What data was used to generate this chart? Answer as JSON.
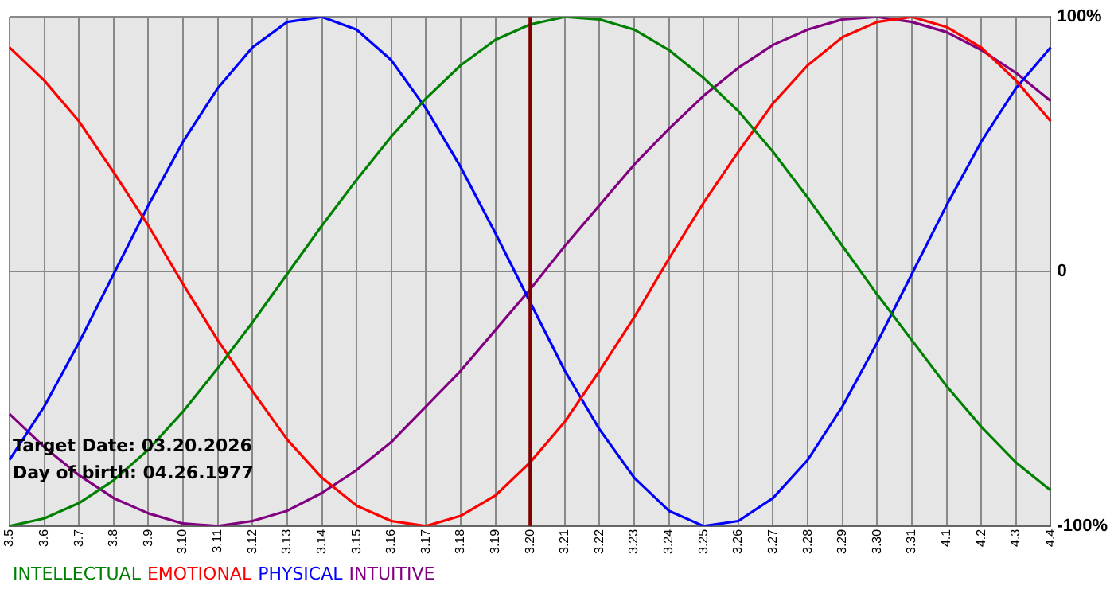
{
  "chart_data": {
    "type": "line",
    "categories": [
      "3.5",
      "3.6",
      "3.7",
      "3.8",
      "3.9",
      "3.10",
      "3.11",
      "3.12",
      "3.13",
      "3.14",
      "3.15",
      "3.16",
      "3.17",
      "3.18",
      "3.19",
      "3.20",
      "3.21",
      "3.22",
      "3.23",
      "3.24",
      "3.25",
      "3.26",
      "3.27",
      "3.28",
      "3.29",
      "3.30",
      "3.31",
      "4.1",
      "4.2",
      "4.3",
      "4.4"
    ],
    "series": [
      {
        "name": "INTELLECTUAL",
        "color": "#008000",
        "values": [
          -100,
          -97,
          -91,
          -82,
          -70,
          -55,
          -38,
          -20,
          -1,
          18,
          36,
          53,
          68,
          81,
          91,
          97,
          100,
          99,
          95,
          87,
          76,
          63,
          47,
          29,
          10,
          -9,
          -27,
          -45,
          -61,
          -75,
          -86
        ]
      },
      {
        "name": "EMOTIONAL",
        "color": "#ff0000",
        "values": [
          88,
          75,
          59,
          39,
          18,
          -5,
          -27,
          -47,
          -66,
          -81,
          -92,
          -98,
          -100,
          -96,
          -88,
          -75,
          -59,
          -39,
          -18,
          5,
          27,
          47,
          66,
          81,
          92,
          98,
          100,
          96,
          88,
          75,
          59
        ]
      },
      {
        "name": "PHYSICAL",
        "color": "#0000ff",
        "values": [
          -74,
          -53,
          -28,
          -1,
          26,
          51,
          72,
          88,
          98,
          100,
          95,
          83,
          64,
          41,
          15,
          -12,
          -39,
          -62,
          -81,
          -94,
          -100,
          -98,
          -89,
          -74,
          -53,
          -28,
          -1,
          26,
          51,
          72,
          88
        ]
      },
      {
        "name": "INTUITIVE",
        "color": "#800080",
        "values": [
          -56,
          -69,
          -80,
          -89,
          -95,
          -99,
          -100,
          -98,
          -94,
          -87,
          -78,
          -67,
          -53,
          -39,
          -23,
          -7,
          10,
          26,
          42,
          56,
          69,
          80,
          89,
          95,
          99,
          100,
          98,
          94,
          87,
          78,
          67
        ]
      }
    ],
    "ylim": [
      -100,
      100
    ],
    "yticks": [
      {
        "value": -100,
        "label": "-100%"
      },
      0,
      {
        "value": 100,
        "label": "100%"
      }
    ],
    "ref_lines": [
      {
        "axis": "x",
        "value": "3.20",
        "color": "#800000"
      }
    ],
    "annotations": [
      "Target Date: 03.20.2026",
      "Day of birth: 04.26.1977"
    ],
    "grid": true,
    "legend": "bottom left",
    "marker": "none",
    "line_style": "solid"
  }
}
